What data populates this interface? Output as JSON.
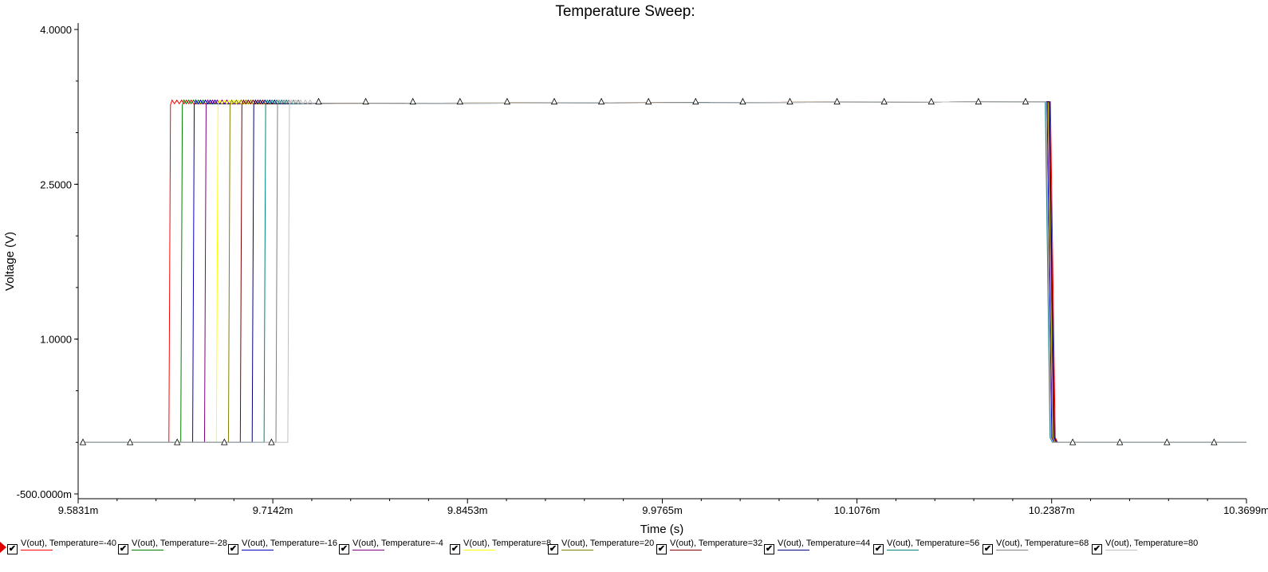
{
  "chart_data": {
    "type": "line",
    "title": "Temperature Sweep:",
    "xlabel": "Time (s)",
    "ylabel": "Voltage (V)",
    "x_unit": "ms",
    "xlim": [
      9.5831,
      10.3699
    ],
    "ylim": [
      -0.5,
      4.0
    ],
    "x_tick_values": [
      9.5831,
      9.7142,
      9.8453,
      9.9765,
      10.1076,
      10.2387,
      10.3699
    ],
    "x_tick_labels": [
      "9.5831m",
      "9.7142m",
      "9.8453m",
      "9.9765m",
      "10.1076m",
      "10.2387m",
      "10.3699m"
    ],
    "y_tick_values": [
      4.0,
      2.5,
      1.0,
      -0.5
    ],
    "y_tick_labels": [
      "4.0000",
      "2.5000",
      "1.0000",
      "-500.0000m"
    ],
    "grid": false,
    "legend_position": "bottom",
    "low_level": 0.0,
    "high_level": 3.3,
    "series": [
      {
        "name": "V(out), Temperature=-40",
        "color": "#ff0000",
        "rise_time": 9.6442,
        "fall_time": 10.2395
      },
      {
        "name": "V(out), Temperature=-28",
        "color": "#008000",
        "rise_time": 9.6522,
        "fall_time": 10.2365
      },
      {
        "name": "V(out), Temperature=-16",
        "color": "#0000c0",
        "rise_time": 9.6602,
        "fall_time": 10.2372
      },
      {
        "name": "V(out), Temperature=-4",
        "color": "#800080",
        "rise_time": 9.6682,
        "fall_time": 10.2378
      },
      {
        "name": "V(out), Temperature=8",
        "color": "#ffff00",
        "rise_time": 9.6762,
        "fall_time": 10.238
      },
      {
        "name": "V(out), Temperature=20",
        "color": "#808000",
        "rise_time": 9.6843,
        "fall_time": 10.2383
      },
      {
        "name": "V(out), Temperature=32",
        "color": "#800000",
        "rise_time": 9.6923,
        "fall_time": 10.2386
      },
      {
        "name": "V(out), Temperature=44",
        "color": "#000080",
        "rise_time": 9.7003,
        "fall_time": 10.2389
      },
      {
        "name": "V(out), Temperature=56",
        "color": "#008080",
        "rise_time": 9.7083,
        "fall_time": 10.236
      },
      {
        "name": "V(out), Temperature=68",
        "color": "#808080",
        "rise_time": 9.7163,
        "fall_time": 10.2363
      },
      {
        "name": "V(out), Temperature=80",
        "color": "#c0c0c0",
        "rise_time": 9.7243,
        "fall_time": 10.2366
      }
    ],
    "marker_series_index": 10
  },
  "legend": {
    "check_glyph": "✔",
    "selected_marker_icon": "arrow-right-icon",
    "selected_marker_color": "#e00000"
  }
}
